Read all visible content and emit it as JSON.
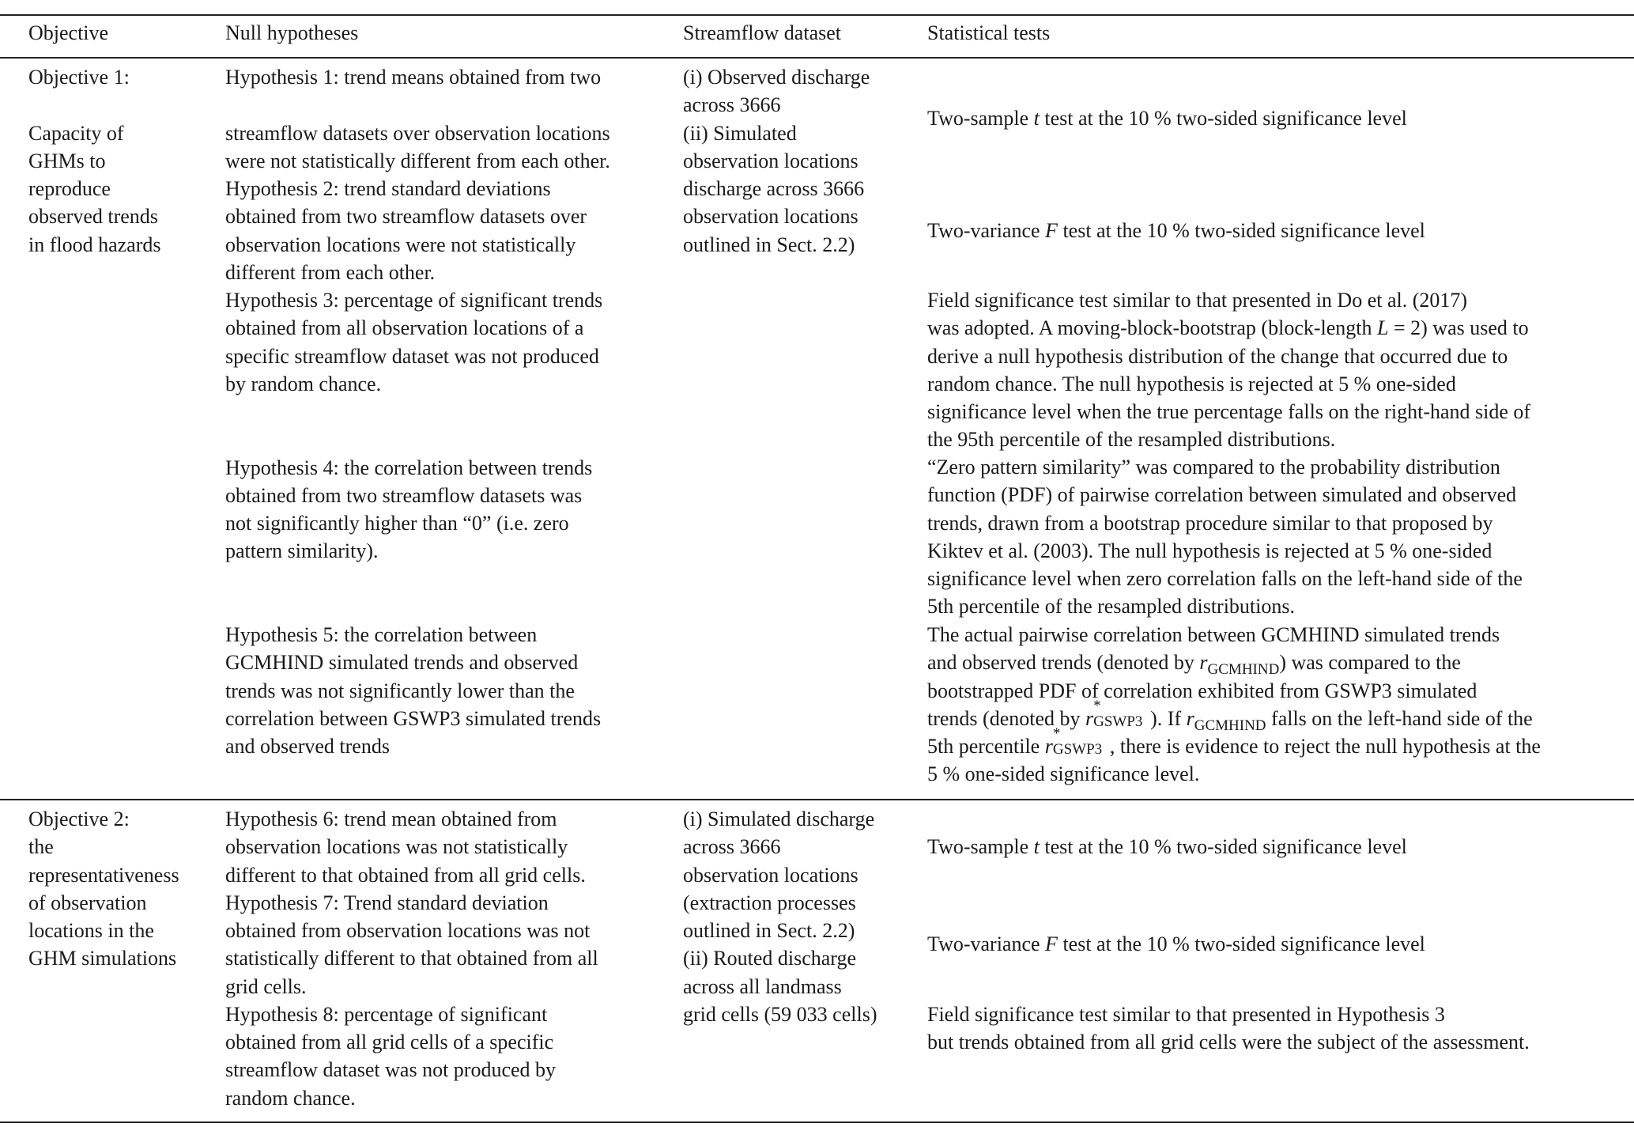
{
  "header": {
    "objective": "Objective",
    "null_hypotheses": "Null hypotheses",
    "streamflow_dataset": "Streamflow dataset",
    "statistical_tests": "Statistical tests"
  },
  "rows": [
    {
      "objective": [
        "Objective 1:",
        "",
        "Capacity of",
        "GHMs to",
        "reproduce",
        "observed trends",
        "in flood hazards"
      ],
      "hypotheses": [
        "Hypothesis 1: trend means obtained from two",
        "",
        "streamflow datasets over observation locations",
        "were not statistically different from each other.",
        "Hypothesis 2: trend standard deviations",
        "obtained from two streamflow datasets over",
        "observation locations were not statistically",
        "different from each other.",
        "Hypothesis 3: percentage of significant trends",
        "obtained from all observation locations of a",
        "specific streamflow dataset was not produced",
        "by random chance.",
        "",
        "",
        "Hypothesis 4: the correlation between trends",
        "obtained from two streamflow datasets was",
        "not significantly higher than “0” (i.e. zero",
        "pattern similarity).",
        "",
        "",
        "Hypothesis 5: the correlation between",
        "GCMHIND simulated trends and observed",
        "trends was not significantly lower than the",
        "correlation between GSWP3 simulated trends",
        "and observed trends"
      ],
      "dataset": [
        "(i) Observed discharge",
        "across 3666",
        "(ii) Simulated",
        "observation locations",
        "discharge across 3666",
        "observation locations",
        "outlined in Sect. 2.2)"
      ],
      "tests": [
        [
          [
            {
              "t": "Two-sample "
            },
            {
              "t": "t",
              "s": "i"
            },
            {
              "t": " test at the 10 % two-sided significance level"
            }
          ]
        ],
        [
          [
            {
              "t": "Two-variance "
            },
            {
              "t": "F",
              "s": "i"
            },
            {
              "t": " test at the 10 % two-sided significance level"
            }
          ]
        ],
        [
          "Field significance test similar to that presented in Do et al. (2017)",
          [
            {
              "t": "was adopted. A moving-block-bootstrap (block-length "
            },
            {
              "t": "L",
              "s": "i"
            },
            {
              "t": " = 2) was used to"
            }
          ],
          "derive a null hypothesis distribution of the change that occurred due to",
          "random chance. The null hypothesis is rejected at 5 % one-sided",
          "significance level when the true percentage falls on the right-hand side of",
          "the 95th percentile of the resampled distributions."
        ],
        [
          "“Zero pattern similarity” was compared to the probability distribution",
          "function (PDF) of pairwise correlation between simulated and observed",
          "trends, drawn from a bootstrap procedure similar to that proposed by",
          "Kiktev et al. (2003). The null hypothesis is rejected at 5 % one-sided",
          "significance level when zero correlation falls on the left-hand side of the",
          "5th percentile of the resampled distributions."
        ],
        [
          "The actual pairwise correlation between GCMHIND simulated trends",
          [
            {
              "t": "and observed trends (denoted by "
            },
            {
              "t": "r",
              "s": "i"
            },
            {
              "t": "GCMHIND",
              "s": "sub"
            },
            {
              "t": ") was compared to the"
            }
          ],
          "bootstrapped PDF of correlation exhibited from GSWP3 simulated",
          [
            {
              "t": "trends (denoted by "
            },
            {
              "t": "r",
              "s": "i"
            },
            {
              "t": "*|GSWP3",
              "s": "ss"
            },
            {
              "t": "). If "
            },
            {
              "t": "r",
              "s": "i"
            },
            {
              "t": "GCMHIND",
              "s": "sub"
            },
            {
              "t": " falls on the left-hand side of the"
            }
          ],
          [
            {
              "t": "5th percentile "
            },
            {
              "t": "r",
              "s": "i"
            },
            {
              "t": "*|GSWP3",
              "s": "ss"
            },
            {
              "t": ", there is evidence to reject the null hypothesis at the"
            }
          ],
          "5 % one-sided significance level."
        ]
      ]
    },
    {
      "objective": [
        "Objective 2:",
        "the",
        "representativeness",
        "of observation",
        "locations in the",
        "GHM simulations"
      ],
      "hypotheses": [
        "Hypothesis 6: trend mean obtained from",
        "observation locations was not statistically",
        "different to that obtained from all grid cells.",
        "Hypothesis 7: Trend standard deviation",
        "obtained from observation locations was not",
        "statistically different to that obtained from all",
        "grid cells.",
        "Hypothesis 8: percentage of significant",
        "obtained from all grid cells of a specific",
        "streamflow dataset was not produced by",
        "random chance."
      ],
      "dataset": [
        "(i) Simulated discharge",
        "across 3666",
        "observation locations",
        "(extraction processes",
        "outlined in Sect. 2.2)",
        "(ii) Routed discharge",
        "across all landmass",
        "grid cells (59 033 cells)"
      ],
      "tests": [
        [
          [
            {
              "t": "Two-sample "
            },
            {
              "t": "t",
              "s": "i"
            },
            {
              "t": " test at the 10 % two-sided significance level"
            }
          ]
        ],
        [
          [
            {
              "t": "Two-variance "
            },
            {
              "t": "F",
              "s": "i"
            },
            {
              "t": " test at the 10 % two-sided significance level"
            }
          ]
        ],
        [
          "Field significance test similar to that presented in Hypothesis 3",
          "but trends obtained from all grid cells were the subject of the assessment."
        ]
      ]
    }
  ]
}
